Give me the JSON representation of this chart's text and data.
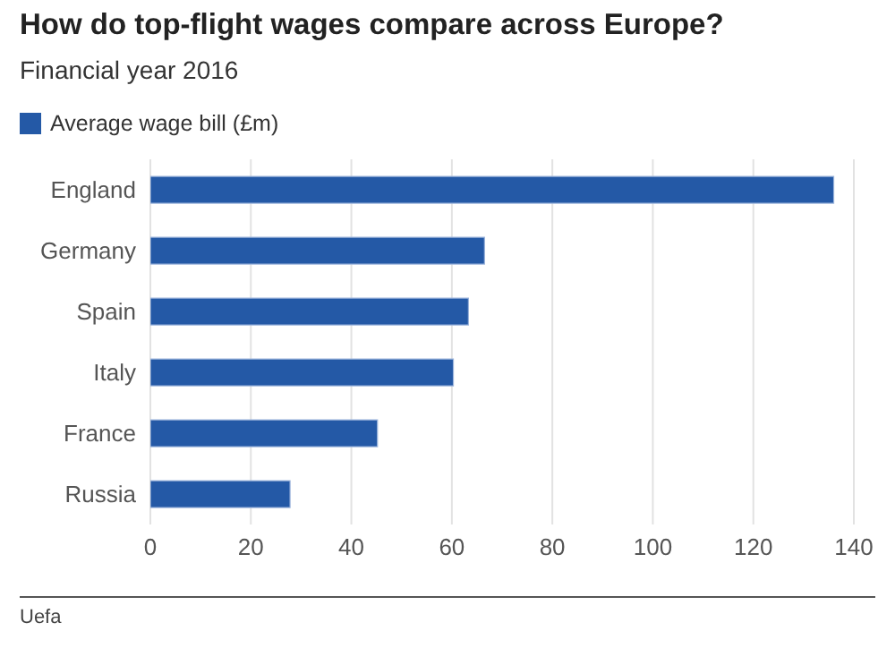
{
  "chart_data": {
    "type": "bar",
    "orientation": "horizontal",
    "title": "How do top-flight wages compare across Europe?",
    "subtitle": "Financial year 2016",
    "categories": [
      "England",
      "Germany",
      "Spain",
      "Italy",
      "France",
      "Russia"
    ],
    "series": [
      {
        "name": "Average wage bill (£m)",
        "color": "#2459a6",
        "values": [
          136,
          66.5,
          63.3,
          60.3,
          45.2,
          27.8
        ]
      }
    ],
    "xlim": [
      0,
      140
    ],
    "xticks": [
      0,
      20,
      40,
      60,
      80,
      100,
      120,
      140
    ],
    "grid": "x",
    "legend": "top left",
    "annotations": [
      "Uefa"
    ]
  }
}
